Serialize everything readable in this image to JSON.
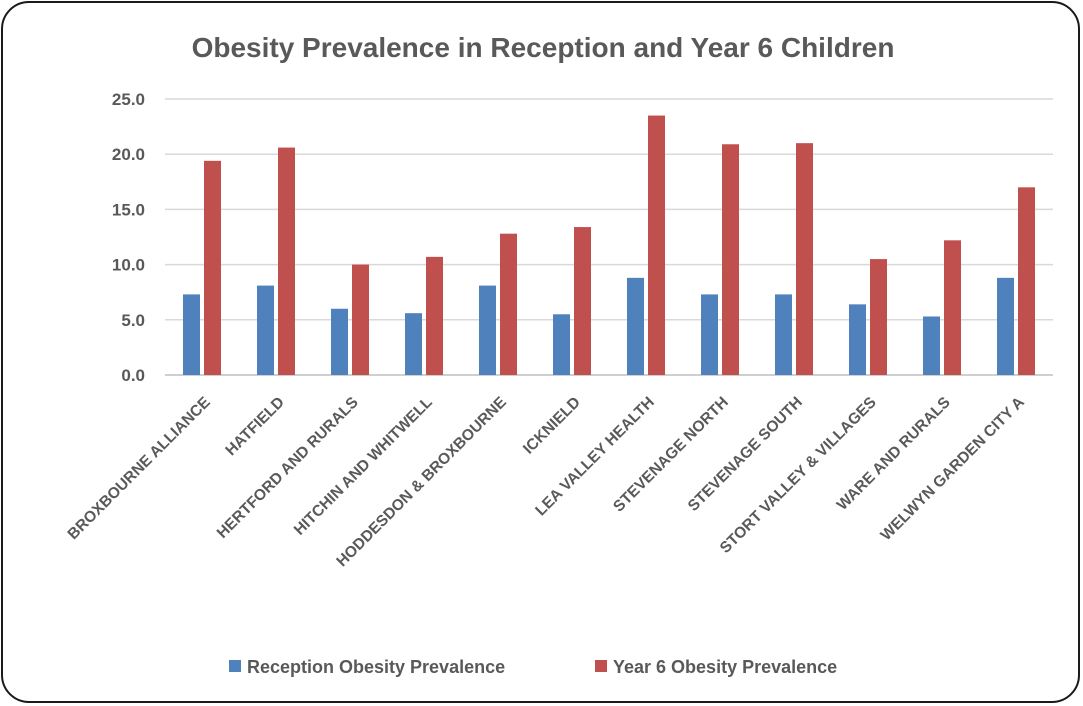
{
  "chart_data": {
    "type": "bar",
    "title": "Obesity Prevalence in Reception and Year 6 Children",
    "xlabel": "",
    "ylabel": "",
    "ylim": [
      0,
      25
    ],
    "yticks": [
      "0.0",
      "5.0",
      "10.0",
      "15.0",
      "20.0",
      "25.0"
    ],
    "categories": [
      "BROXBOURNE ALLIANCE",
      "HATFIELD",
      "HERTFORD AND RURALS",
      "HITCHIN AND WHITWELL",
      "HODDESDON & BROXBOURNE",
      "ICKNIELD",
      "LEA VALLEY HEALTH",
      "STEVENAGE NORTH",
      "STEVENAGE SOUTH",
      "STORT VALLEY & VILLAGES",
      "WARE AND RURALS",
      "WELWYN GARDEN CITY A"
    ],
    "series": [
      {
        "name": "Reception Obesity Prevalence",
        "color": "#4f81bd",
        "values": [
          7.3,
          8.1,
          6.0,
          5.6,
          8.1,
          5.5,
          8.8,
          7.3,
          7.3,
          6.4,
          5.3,
          8.8
        ]
      },
      {
        "name": "Year 6 Obesity Prevalence",
        "color": "#c0504d",
        "values": [
          19.4,
          20.6,
          10.0,
          10.7,
          12.8,
          13.4,
          23.5,
          20.9,
          21.0,
          10.5,
          12.2,
          17.0
        ]
      }
    ],
    "grid": true,
    "legend_position": "bottom"
  }
}
